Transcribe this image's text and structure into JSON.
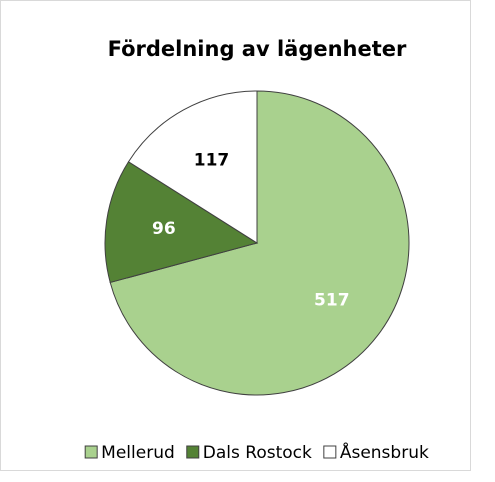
{
  "chart_data": {
    "type": "pie",
    "title": "Fördelning av lägenheter",
    "categories": [
      "Mellerud",
      "Dals Rostock",
      "Åsensbruk"
    ],
    "values": [
      517,
      96,
      117
    ],
    "colors": [
      "#a9d18e",
      "#548235",
      "#ffffff"
    ],
    "label_colors": [
      "#ffffff",
      "#ffffff",
      "#000000"
    ],
    "start_angle": 0,
    "direction": "clockwise",
    "legend": "bottom"
  }
}
